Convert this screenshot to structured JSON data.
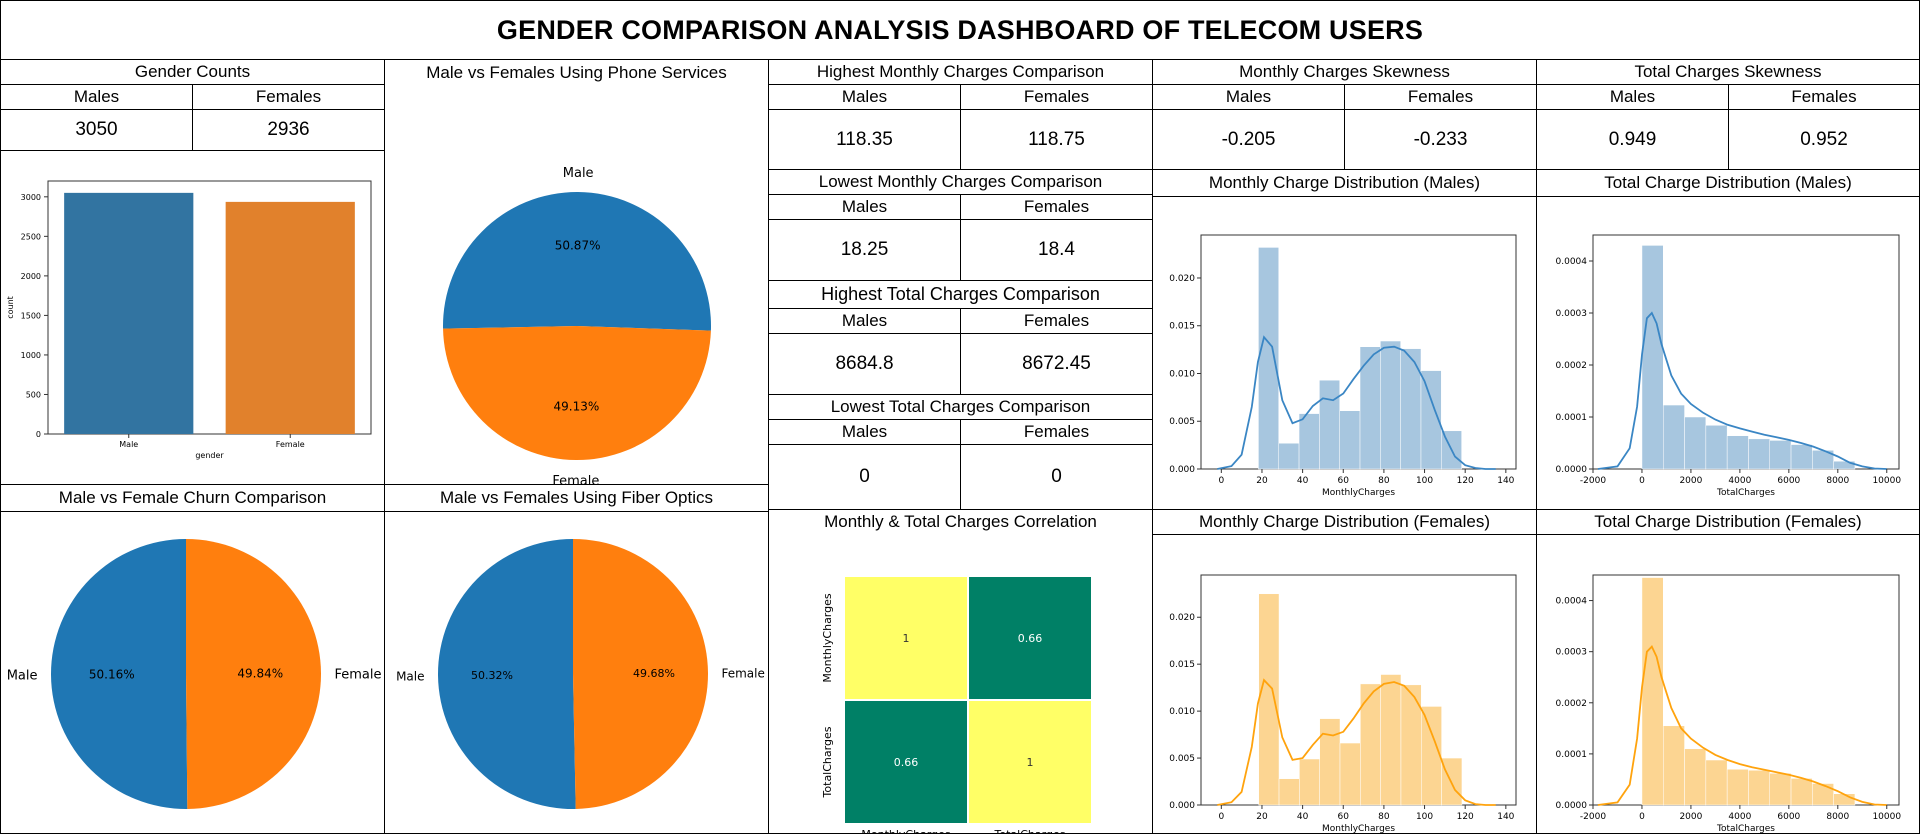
{
  "title": "GENDER COMPARISON ANALYSIS DASHBOARD OF TELECOM USERS",
  "colors": {
    "male": "#1f77b4",
    "female": "#ff7f0e",
    "bar_male": "#3274a1",
    "bar_female": "#e1812c",
    "kde_male": "#3a86c4",
    "kde_female": "#ffa30d",
    "hist_male": "#a7c6df",
    "hist_female": "#fcd592",
    "heat_high": "#ffff66",
    "heat_mid": "#008066"
  },
  "gender_counts": {
    "title": "Gender Counts",
    "males_label": "Males",
    "females_label": "Females",
    "males_value": "3050",
    "females_value": "2936"
  },
  "highest_monthly": {
    "title": "Highest Monthly Charges Comparison",
    "males_label": "Males",
    "females_label": "Females",
    "males_value": "118.35",
    "females_value": "118.75"
  },
  "lowest_monthly": {
    "title": "Lowest Monthly Charges Comparison",
    "males_label": "Males",
    "females_label": "Females",
    "males_value": "18.25",
    "females_value": "18.4"
  },
  "highest_total": {
    "title": "Highest Total Charges Comparison",
    "males_label": "Males",
    "females_label": "Females",
    "males_value": "8684.8",
    "females_value": "8672.45"
  },
  "lowest_total": {
    "title": "Lowest Total Charges Comparison",
    "males_label": "Males",
    "females_label": "Females",
    "males_value": "0",
    "females_value": "0"
  },
  "monthly_skew": {
    "title": "Monthly Charges Skewness",
    "males_label": "Males",
    "females_label": "Females",
    "males_value": "-0.205",
    "females_value": "-0.233"
  },
  "total_skew": {
    "title": "Total Charges Skewness",
    "males_label": "Males",
    "females_label": "Females",
    "males_value": "0.949",
    "females_value": "0.952"
  },
  "panels": {
    "phone_title": "Male vs Females Using Phone Services",
    "churn_title": "Male vs Female Churn Comparison",
    "fiber_title": "Male vs Females Using Fiber Optics",
    "corr_title": "Monthly & Total Charges Correlation",
    "mcd_male_title": "Monthly Charge Distribution (Males)",
    "tcd_male_title": "Total Charge Distribution (Males)",
    "mcd_female_title": "Monthly Charge Distribution (Females)",
    "tcd_female_title": "Total Charge Distribution (Females)"
  },
  "chart_data": [
    {
      "id": "gender_bar",
      "type": "bar",
      "categories": [
        "Male",
        "Female"
      ],
      "values": [
        3050,
        2936
      ],
      "xlabel": "gender",
      "ylabel": "count",
      "ylim": [
        0,
        3200
      ],
      "yticks": [
        0,
        500,
        1000,
        1500,
        2000,
        2500,
        3000
      ]
    },
    {
      "id": "phone_pie",
      "type": "pie",
      "labels": [
        "Male",
        "Female"
      ],
      "values": [
        50.87,
        49.13
      ],
      "pct_labels": [
        "50.87%",
        "49.13%"
      ]
    },
    {
      "id": "churn_pie",
      "type": "pie",
      "labels": [
        "Male",
        "Female"
      ],
      "values": [
        50.16,
        49.84
      ],
      "pct_labels": [
        "50.16%",
        "49.84%"
      ]
    },
    {
      "id": "fiber_pie",
      "type": "pie",
      "labels": [
        "Male",
        "Female"
      ],
      "values": [
        50.32,
        49.68
      ],
      "pct_labels": [
        "50.32%",
        "49.68%"
      ]
    },
    {
      "id": "corr_heat",
      "type": "heatmap",
      "rows": [
        "MonthlyCharges",
        "TotalCharges"
      ],
      "cols": [
        "MonthlyCharges",
        "TotalCharges"
      ],
      "values": [
        [
          1,
          0.66
        ],
        [
          0.66,
          1
        ]
      ],
      "labels": [
        [
          "1",
          "0.66"
        ],
        [
          "0.66",
          "1"
        ]
      ]
    },
    {
      "id": "mcd_male",
      "type": "area",
      "xlabel": "MonthlyCharges",
      "xlim": [
        -10,
        145
      ],
      "ylim": [
        0,
        0.0245
      ],
      "xticks": [
        0,
        20,
        40,
        60,
        80,
        100,
        120,
        140
      ],
      "yticks": [
        0,
        0.005,
        0.01,
        0.015,
        0.02
      ],
      "ytick_labels": [
        "0.000",
        "0.005",
        "0.010",
        "0.015",
        "0.020"
      ],
      "bins": [
        {
          "x0": 18.25,
          "x1": 28.25,
          "y": 0.0232
        },
        {
          "x0": 28.25,
          "x1": 38.25,
          "y": 0.0027
        },
        {
          "x0": 38.25,
          "x1": 48.25,
          "y": 0.0058
        },
        {
          "x0": 48.25,
          "x1": 58.25,
          "y": 0.0093
        },
        {
          "x0": 58.25,
          "x1": 68.25,
          "y": 0.0061
        },
        {
          "x0": 68.25,
          "x1": 78.25,
          "y": 0.0128
        },
        {
          "x0": 78.25,
          "x1": 88.25,
          "y": 0.0134
        },
        {
          "x0": 88.25,
          "x1": 98.25,
          "y": 0.0126
        },
        {
          "x0": 98.25,
          "x1": 108.25,
          "y": 0.0103
        },
        {
          "x0": 108.25,
          "x1": 118.25,
          "y": 0.004
        }
      ],
      "kde_x": [
        -2,
        5,
        10,
        15,
        18,
        21,
        25,
        30,
        35,
        40,
        45,
        50,
        55,
        60,
        65,
        70,
        75,
        80,
        85,
        90,
        95,
        100,
        105,
        110,
        115,
        120,
        125,
        130,
        135
      ],
      "kde_y": [
        0,
        0.0003,
        0.0015,
        0.0065,
        0.0112,
        0.0138,
        0.0128,
        0.0072,
        0.0048,
        0.0052,
        0.0066,
        0.0074,
        0.0072,
        0.0079,
        0.0094,
        0.0108,
        0.012,
        0.0127,
        0.0128,
        0.0124,
        0.0112,
        0.0092,
        0.0062,
        0.0034,
        0.0013,
        0.0004,
        0.0001,
        0,
        0
      ]
    },
    {
      "id": "tcd_male",
      "type": "area",
      "xlabel": "TotalCharges",
      "xlim": [
        -2000,
        10500
      ],
      "ylim": [
        0,
        0.00045
      ],
      "xticks": [
        -2000,
        0,
        2000,
        4000,
        6000,
        8000,
        10000
      ],
      "yticks": [
        0,
        0.0001,
        0.0002,
        0.0003,
        0.0004
      ],
      "ytick_labels": [
        "0.0000",
        "0.0001",
        "0.0002",
        "0.0003",
        "0.0004"
      ],
      "bins": [
        {
          "x0": 0,
          "x1": 870,
          "y": 0.00043
        },
        {
          "x0": 870,
          "x1": 1740,
          "y": 0.000123
        },
        {
          "x0": 1740,
          "x1": 2610,
          "y": 0.0001
        },
        {
          "x0": 2610,
          "x1": 3480,
          "y": 8.4e-05
        },
        {
          "x0": 3480,
          "x1": 4350,
          "y": 6.4e-05
        },
        {
          "x0": 4350,
          "x1": 5220,
          "y": 5.8e-05
        },
        {
          "x0": 5220,
          "x1": 6090,
          "y": 5.5e-05
        },
        {
          "x0": 6090,
          "x1": 6960,
          "y": 4.7e-05
        },
        {
          "x0": 6960,
          "x1": 7830,
          "y": 3.6e-05
        },
        {
          "x0": 7830,
          "x1": 8700,
          "y": 1.5e-05
        }
      ],
      "kde_x": [
        -1800,
        -1000,
        -500,
        -200,
        0,
        200,
        400,
        600,
        800,
        1200,
        1600,
        2000,
        2500,
        3000,
        3500,
        4000,
        4500,
        5000,
        5500,
        6000,
        6500,
        7000,
        7500,
        8000,
        8500,
        9000,
        9500,
        10000
      ],
      "kde_y": [
        0,
        5e-06,
        4e-05,
        0.00012,
        0.00022,
        0.00029,
        0.0003,
        0.00028,
        0.00024,
        0.00018,
        0.000145,
        0.000125,
        0.000108,
        9.5e-05,
        8.5e-05,
        7.8e-05,
        7.2e-05,
        6.6e-05,
        6.1e-05,
        5.6e-05,
        5e-05,
        4.3e-05,
        3.4e-05,
        2.4e-05,
        1.2e-05,
        5e-06,
        1e-06,
        0
      ]
    },
    {
      "id": "mcd_female",
      "type": "area",
      "xlabel": "MonthlyCharges",
      "xlim": [
        -10,
        145
      ],
      "ylim": [
        0,
        0.0245
      ],
      "xticks": [
        0,
        20,
        40,
        60,
        80,
        100,
        120,
        140
      ],
      "yticks": [
        0,
        0.005,
        0.01,
        0.015,
        0.02
      ],
      "ytick_labels": [
        "0.000",
        "0.005",
        "0.010",
        "0.015",
        "0.020"
      ],
      "bins": [
        {
          "x0": 18.4,
          "x1": 28.4,
          "y": 0.0225
        },
        {
          "x0": 28.4,
          "x1": 38.4,
          "y": 0.0028
        },
        {
          "x0": 38.4,
          "x1": 48.4,
          "y": 0.0049
        },
        {
          "x0": 48.4,
          "x1": 58.4,
          "y": 0.0092
        },
        {
          "x0": 58.4,
          "x1": 68.4,
          "y": 0.0066
        },
        {
          "x0": 68.4,
          "x1": 78.4,
          "y": 0.0129
        },
        {
          "x0": 78.4,
          "x1": 88.4,
          "y": 0.0139
        },
        {
          "x0": 88.4,
          "x1": 98.4,
          "y": 0.0128
        },
        {
          "x0": 98.4,
          "x1": 108.4,
          "y": 0.0105
        },
        {
          "x0": 108.4,
          "x1": 118.4,
          "y": 0.005
        }
      ],
      "kde_x": [
        -2,
        5,
        10,
        15,
        18,
        21,
        25,
        30,
        35,
        40,
        45,
        50,
        55,
        60,
        65,
        70,
        75,
        80,
        85,
        90,
        95,
        100,
        105,
        110,
        115,
        120,
        125,
        130,
        135
      ],
      "kde_y": [
        0,
        0.0003,
        0.0014,
        0.0062,
        0.0108,
        0.0133,
        0.0124,
        0.0072,
        0.0048,
        0.005,
        0.0064,
        0.0076,
        0.0074,
        0.0078,
        0.0092,
        0.0108,
        0.0121,
        0.0129,
        0.0131,
        0.0127,
        0.0115,
        0.0096,
        0.0068,
        0.0038,
        0.0016,
        0.0005,
        0.0001,
        0,
        0
      ]
    },
    {
      "id": "tcd_female",
      "type": "area",
      "xlabel": "TotalCharges",
      "xlim": [
        -2000,
        10500
      ],
      "ylim": [
        0,
        0.00045
      ],
      "xticks": [
        -2000,
        0,
        2000,
        4000,
        6000,
        8000,
        10000
      ],
      "yticks": [
        0,
        0.0001,
        0.0002,
        0.0003,
        0.0004
      ],
      "ytick_labels": [
        "0.0000",
        "0.0001",
        "0.0002",
        "0.0003",
        "0.0004"
      ],
      "bins": [
        {
          "x0": 0,
          "x1": 870,
          "y": 0.000445
        },
        {
          "x0": 870,
          "x1": 1740,
          "y": 0.000155
        },
        {
          "x0": 1740,
          "x1": 2610,
          "y": 0.00011
        },
        {
          "x0": 2610,
          "x1": 3480,
          "y": 8.8e-05
        },
        {
          "x0": 3480,
          "x1": 4350,
          "y": 7e-05
        },
        {
          "x0": 4350,
          "x1": 5220,
          "y": 6.8e-05
        },
        {
          "x0": 5220,
          "x1": 6090,
          "y": 6.2e-05
        },
        {
          "x0": 6090,
          "x1": 6960,
          "y": 5.2e-05
        },
        {
          "x0": 6960,
          "x1": 7830,
          "y": 4.2e-05
        },
        {
          "x0": 7830,
          "x1": 8700,
          "y": 2.2e-05
        }
      ],
      "kde_x": [
        -1800,
        -1000,
        -500,
        -200,
        0,
        200,
        400,
        600,
        800,
        1200,
        1600,
        2000,
        2500,
        3000,
        3500,
        4000,
        4500,
        5000,
        5500,
        6000,
        6500,
        7000,
        7500,
        8000,
        8500,
        9000,
        9500,
        10000
      ],
      "kde_y": [
        0,
        5e-06,
        4e-05,
        0.00013,
        0.00023,
        0.0003,
        0.00031,
        0.00029,
        0.00025,
        0.00019,
        0.00015,
        0.00013,
        0.000112,
        9.8e-05,
        8.8e-05,
        8e-05,
        7.4e-05,
        6.9e-05,
        6.4e-05,
        5.9e-05,
        5.3e-05,
        4.6e-05,
        3.7e-05,
        2.7e-05,
        1.5e-05,
        6e-06,
        1e-06,
        0
      ]
    }
  ]
}
